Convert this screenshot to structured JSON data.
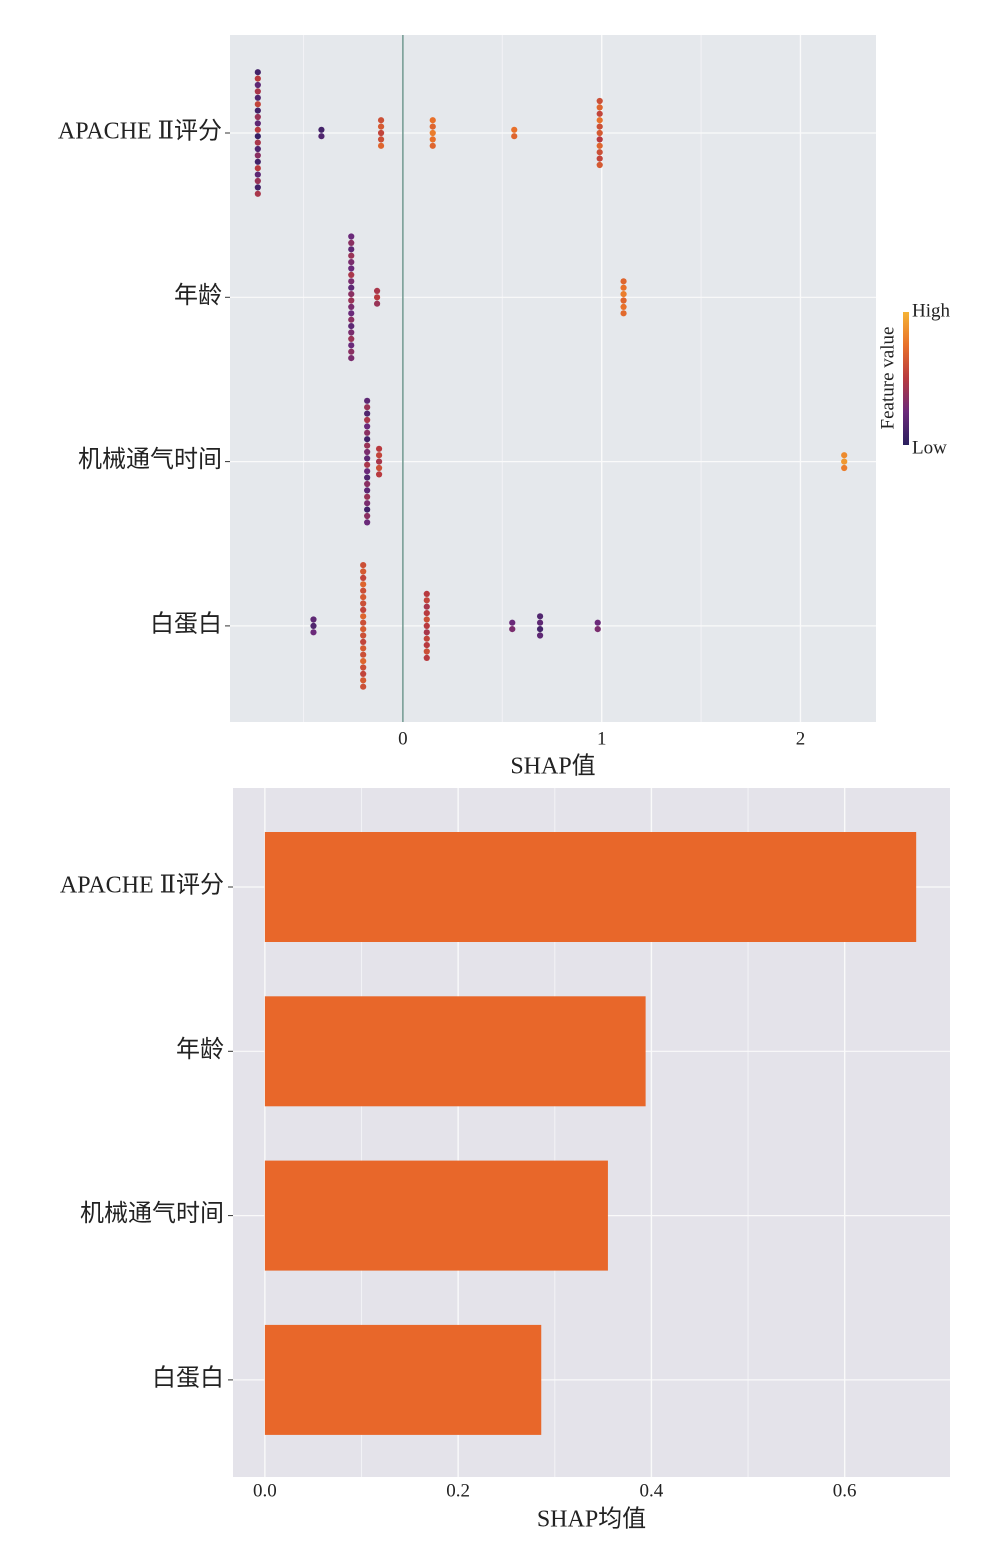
{
  "chart_data": [
    {
      "type": "beeswarm",
      "xlabel": "SHAP值",
      "categories": [
        "APACHE Ⅱ评分",
        "年龄",
        "机械通气时间",
        "白蛋白"
      ],
      "points": [
        {
          "shap": [
            -0.73,
            -0.73,
            -0.73,
            -0.73,
            -0.73,
            -0.73,
            -0.73,
            -0.73,
            -0.73,
            -0.73,
            -0.73,
            -0.73,
            -0.73,
            -0.73,
            -0.73,
            -0.73,
            -0.73,
            -0.73,
            -0.73,
            -0.73,
            -0.41,
            -0.41,
            -0.11,
            -0.11,
            -0.11,
            -0.11,
            -0.11,
            0.15,
            0.15,
            0.15,
            0.15,
            0.15,
            0.56,
            0.56,
            0.99,
            0.99,
            0.99,
            0.99,
            0.99,
            0.99,
            0.99,
            0.99,
            0.99,
            0.99,
            0.99
          ],
          "feature": [
            0.1,
            0.5,
            0.2,
            0.45,
            0.15,
            0.55,
            0.1,
            0.4,
            0.2,
            0.5,
            0.05,
            0.45,
            0.15,
            0.35,
            0.1,
            0.5,
            0.2,
            0.4,
            0.1,
            0.45,
            0.1,
            0.15,
            0.6,
            0.65,
            0.55,
            0.6,
            0.7,
            0.75,
            0.7,
            0.8,
            0.75,
            0.7,
            0.75,
            0.7,
            0.6,
            0.7,
            0.55,
            0.75,
            0.6,
            0.65,
            0.5,
            0.7,
            0.6,
            0.55,
            0.65
          ]
        },
        {
          "shap": [
            -0.26,
            -0.26,
            -0.26,
            -0.26,
            -0.26,
            -0.26,
            -0.26,
            -0.26,
            -0.26,
            -0.26,
            -0.26,
            -0.26,
            -0.26,
            -0.26,
            -0.26,
            -0.26,
            -0.26,
            -0.26,
            -0.26,
            -0.26,
            -0.13,
            -0.13,
            -0.13,
            1.11,
            1.11,
            1.11,
            1.11,
            1.11,
            1.11
          ],
          "feature": [
            0.25,
            0.35,
            0.2,
            0.4,
            0.3,
            0.25,
            0.45,
            0.3,
            0.2,
            0.35,
            0.4,
            0.3,
            0.25,
            0.35,
            0.2,
            0.3,
            0.4,
            0.25,
            0.35,
            0.3,
            0.45,
            0.5,
            0.4,
            0.7,
            0.75,
            0.8,
            0.7,
            0.75,
            0.72
          ]
        },
        {
          "shap": [
            -0.18,
            -0.18,
            -0.18,
            -0.18,
            -0.18,
            -0.18,
            -0.18,
            -0.18,
            -0.18,
            -0.18,
            -0.18,
            -0.18,
            -0.18,
            -0.18,
            -0.18,
            -0.18,
            -0.18,
            -0.18,
            -0.18,
            -0.18,
            -0.12,
            -0.12,
            -0.12,
            -0.12,
            -0.12,
            2.22,
            2.22,
            2.22
          ],
          "feature": [
            0.2,
            0.4,
            0.15,
            0.45,
            0.25,
            0.35,
            0.1,
            0.4,
            0.3,
            0.2,
            0.45,
            0.25,
            0.15,
            0.35,
            0.2,
            0.4,
            0.3,
            0.1,
            0.35,
            0.25,
            0.5,
            0.55,
            0.45,
            0.6,
            0.5,
            0.85,
            0.9,
            0.8
          ]
        },
        {
          "shap": [
            -0.2,
            -0.2,
            -0.2,
            -0.2,
            -0.2,
            -0.2,
            -0.2,
            -0.2,
            -0.2,
            -0.2,
            -0.2,
            -0.2,
            -0.2,
            -0.2,
            -0.2,
            -0.2,
            -0.2,
            -0.2,
            -0.2,
            -0.2,
            -0.45,
            -0.45,
            -0.45,
            0.12,
            0.12,
            0.12,
            0.12,
            0.12,
            0.12,
            0.12,
            0.12,
            0.12,
            0.12,
            0.12,
            0.55,
            0.55,
            0.69,
            0.69,
            0.69,
            0.69,
            0.98,
            0.98
          ],
          "feature": [
            0.6,
            0.65,
            0.55,
            0.7,
            0.6,
            0.65,
            0.6,
            0.55,
            0.7,
            0.6,
            0.65,
            0.6,
            0.55,
            0.65,
            0.6,
            0.7,
            0.6,
            0.55,
            0.65,
            0.6,
            0.2,
            0.15,
            0.25,
            0.5,
            0.55,
            0.45,
            0.5,
            0.6,
            0.5,
            0.45,
            0.55,
            0.5,
            0.6,
            0.5,
            0.25,
            0.3,
            0.15,
            0.2,
            0.1,
            0.2,
            0.25,
            0.3
          ]
        }
      ],
      "xlim": [
        -0.87,
        2.38
      ],
      "xticks": [
        0,
        1,
        2
      ],
      "minor_xticks": [
        -0.5,
        0.5,
        1.5
      ],
      "grid": true,
      "vline": 0,
      "vline_color": "#2f6b5e",
      "colorscale": [
        "#2a1f5e",
        "#6b2a7a",
        "#b83a3f",
        "#e8702a",
        "#f5b335"
      ],
      "colorbar": {
        "label": "Feature value",
        "high": "High",
        "low": "Low"
      }
    },
    {
      "type": "barh",
      "xlabel": "SHAP均值",
      "categories": [
        "APACHE Ⅱ评分",
        "年龄",
        "机械通气时间",
        "白蛋白"
      ],
      "values": [
        0.674,
        0.394,
        0.355,
        0.286
      ],
      "color": "#e8672a",
      "xlim": [
        -0.033,
        0.709
      ],
      "xticks": [
        {
          "value": 0,
          "label": "0.0"
        },
        0.2,
        0.4,
        0.6
      ],
      "minor_xticks": [
        0.1,
        0.3,
        0.5
      ],
      "grid": true
    }
  ]
}
